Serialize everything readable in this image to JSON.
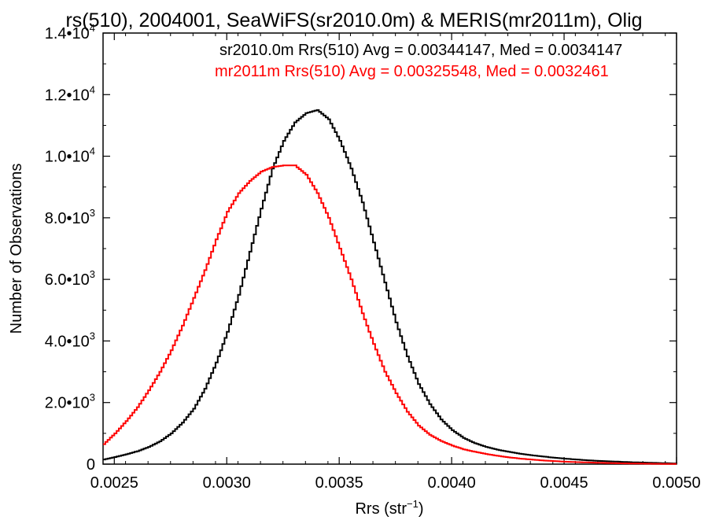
{
  "chart_data": {
    "type": "line",
    "title": "rs(510), 2004001, SeaWiFS(sr2010.0m) & MERIS(mr2011m), Olig",
    "xlabel": "Rrs (str",
    "xlabel_sup": "−1",
    "xlabel_close": ")",
    "ylabel": "Number of Observations",
    "xlim": [
      0.00245,
      0.005
    ],
    "ylim": [
      0,
      14000
    ],
    "x_ticks": [
      {
        "value": 0.0025,
        "label": "0.0025"
      },
      {
        "value": 0.003,
        "label": "0.0030"
      },
      {
        "value": 0.0035,
        "label": "0.0035"
      },
      {
        "value": 0.004,
        "label": "0.0040"
      },
      {
        "value": 0.0045,
        "label": "0.0045"
      },
      {
        "value": 0.005,
        "label": "0.0050"
      }
    ],
    "y_ticks": [
      {
        "value": 0,
        "mant": "0",
        "exp": ""
      },
      {
        "value": 2000,
        "mant": "2.0•10",
        "exp": "3"
      },
      {
        "value": 4000,
        "mant": "4.0•10",
        "exp": "3"
      },
      {
        "value": 6000,
        "mant": "6.0•10",
        "exp": "3"
      },
      {
        "value": 8000,
        "mant": "8.0•10",
        "exp": "3"
      },
      {
        "value": 10000,
        "mant": "1.0•10",
        "exp": "4"
      },
      {
        "value": 12000,
        "mant": "1.2•10",
        "exp": "4"
      },
      {
        "value": 14000,
        "mant": "1.4•10",
        "exp": "4"
      }
    ],
    "grid": false,
    "series": [
      {
        "name": "sr2010.0m Rrs(510) Avg = 0.00344147, Med = 0.0034147",
        "color": "#000000",
        "x": [
          0.00245,
          0.0025,
          0.00255,
          0.0026,
          0.00265,
          0.0027,
          0.00275,
          0.0028,
          0.00285,
          0.0029,
          0.00295,
          0.003,
          0.00305,
          0.0031,
          0.00315,
          0.0032,
          0.00325,
          0.0033,
          0.00335,
          0.0034,
          0.00345,
          0.0035,
          0.00355,
          0.0036,
          0.00365,
          0.0037,
          0.00375,
          0.0038,
          0.00385,
          0.0039,
          0.00395,
          0.004,
          0.00405,
          0.0041,
          0.00415,
          0.0042,
          0.00425,
          0.0043,
          0.00435,
          0.0044,
          0.00445,
          0.0045,
          0.00455,
          0.0046,
          0.00465,
          0.0047,
          0.00475,
          0.0048,
          0.00485,
          0.0049,
          0.00495,
          0.005
        ],
        "y": [
          150,
          230,
          320,
          420,
          560,
          740,
          1000,
          1350,
          1800,
          2450,
          3300,
          4300,
          5500,
          6900,
          8300,
          9600,
          10500,
          11100,
          11400,
          11500,
          11200,
          10500,
          9600,
          8500,
          7200,
          5900,
          4600,
          3500,
          2600,
          1950,
          1450,
          1100,
          850,
          680,
          560,
          470,
          400,
          340,
          290,
          250,
          210,
          180,
          150,
          125,
          105,
          90,
          75,
          60,
          50,
          40,
          30,
          20
        ]
      },
      {
        "name": "mr2011m Rrs(510) Avg = 0.00325548, Med = 0.0032461",
        "color": "#ff0000",
        "x": [
          0.00245,
          0.0025,
          0.00255,
          0.0026,
          0.00265,
          0.0027,
          0.00275,
          0.0028,
          0.00285,
          0.0029,
          0.00295,
          0.003,
          0.00305,
          0.0031,
          0.00315,
          0.0032,
          0.00325,
          0.0033,
          0.00335,
          0.0034,
          0.00345,
          0.0035,
          0.00355,
          0.0036,
          0.00365,
          0.0037,
          0.00375,
          0.0038,
          0.00385,
          0.0039,
          0.00395,
          0.004,
          0.00405,
          0.0041,
          0.00415,
          0.0042,
          0.00425,
          0.0043,
          0.00435,
          0.0044,
          0.00445,
          0.0045,
          0.00455,
          0.0046,
          0.00465,
          0.0047,
          0.00475,
          0.0048,
          0.00485,
          0.0049,
          0.00495,
          0.005
        ],
        "y": [
          650,
          1000,
          1400,
          1850,
          2400,
          3000,
          3700,
          4500,
          5400,
          6300,
          7300,
          8200,
          8800,
          9200,
          9500,
          9650,
          9700,
          9700,
          9400,
          8800,
          8000,
          7000,
          6000,
          4900,
          3900,
          3000,
          2300,
          1700,
          1250,
          950,
          750,
          600,
          480,
          400,
          330,
          270,
          220,
          180,
          150,
          120,
          100,
          80,
          65,
          55,
          45,
          35,
          25,
          20,
          15,
          10,
          8,
          5
        ]
      }
    ]
  }
}
